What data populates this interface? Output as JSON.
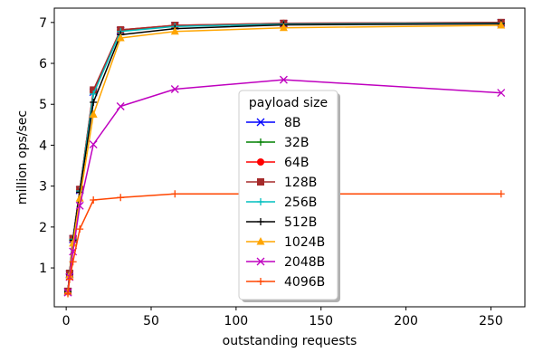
{
  "chart_data": {
    "type": "line",
    "xlabel": "outstanding requests",
    "ylabel": "million ops/sec",
    "xlim": [
      -7,
      270
    ],
    "ylim": [
      0.05,
      7.35
    ],
    "xticks": [
      0,
      50,
      100,
      150,
      200,
      250
    ],
    "yticks": [
      1,
      2,
      3,
      4,
      5,
      6,
      7
    ],
    "x": [
      1,
      2,
      4,
      8,
      16,
      32,
      64,
      128,
      256
    ],
    "grid": false,
    "legend": {
      "title": "payload size",
      "position": "center-bottom"
    },
    "series": [
      {
        "name": "8B",
        "color": "#0000ff",
        "marker": "x",
        "values": [
          0.42,
          0.85,
          1.7,
          2.9,
          5.3,
          6.8,
          6.92,
          6.97,
          6.99
        ]
      },
      {
        "name": "32B",
        "color": "#008000",
        "marker": "thin-plus",
        "values": [
          0.42,
          0.85,
          1.7,
          2.9,
          5.3,
          6.8,
          6.92,
          6.97,
          6.99
        ]
      },
      {
        "name": "64B",
        "color": "#ff0000",
        "marker": "circle",
        "values": [
          0.43,
          0.87,
          1.72,
          2.92,
          5.33,
          6.82,
          6.93,
          6.98,
          7.0
        ]
      },
      {
        "name": "128B",
        "color": "#a52a2a",
        "marker": "square",
        "values": [
          0.43,
          0.87,
          1.72,
          2.92,
          5.35,
          6.82,
          6.93,
          6.98,
          7.0
        ]
      },
      {
        "name": "256B",
        "color": "#00bfbf",
        "marker": "thin-plus",
        "values": [
          0.42,
          0.85,
          1.7,
          2.88,
          5.25,
          6.78,
          6.9,
          6.96,
          6.98
        ]
      },
      {
        "name": "512B",
        "color": "#000000",
        "marker": "thin-plus",
        "values": [
          0.42,
          0.84,
          1.68,
          2.85,
          5.05,
          6.7,
          6.85,
          6.94,
          6.97
        ]
      },
      {
        "name": "1024B",
        "color": "#ffa500",
        "marker": "triangle",
        "values": [
          0.41,
          0.82,
          1.6,
          2.7,
          4.75,
          6.62,
          6.78,
          6.87,
          6.93
        ]
      },
      {
        "name": "2048B",
        "color": "#bf00bf",
        "marker": "x",
        "values": [
          0.4,
          0.78,
          1.4,
          2.52,
          4.02,
          4.95,
          5.37,
          5.6,
          5.28
        ]
      },
      {
        "name": "4096B",
        "color": "#ff4500",
        "marker": "thin-plus",
        "values": [
          0.37,
          0.72,
          1.15,
          1.95,
          2.66,
          2.72,
          2.81,
          2.81,
          2.81
        ]
      }
    ]
  }
}
